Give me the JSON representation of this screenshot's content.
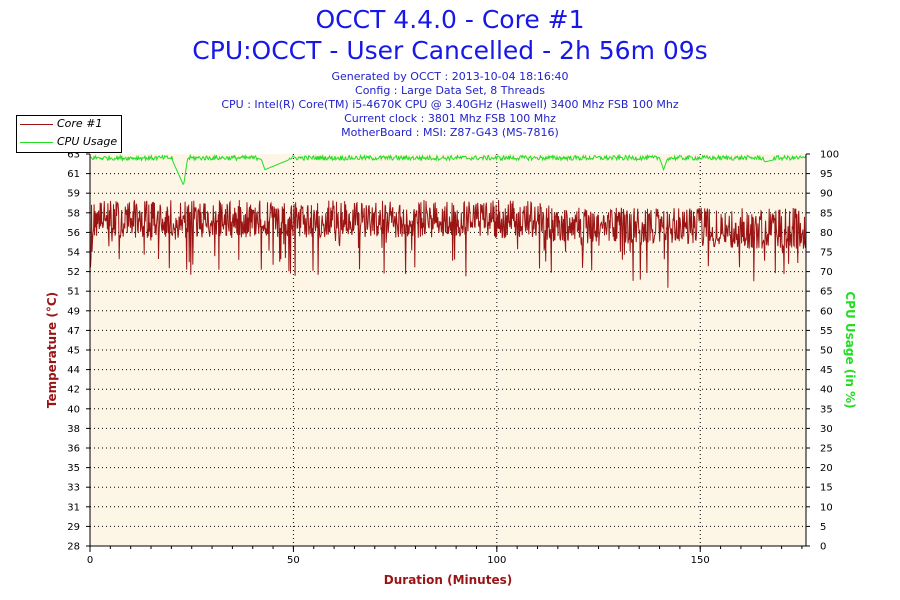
{
  "title": "OCCT 4.4.0 - Core #1",
  "subtitle": "CPU:OCCT - User Cancelled - 2h 56m 09s",
  "info": [
    "Generated by OCCT : 2013-10-04 18:16:40",
    "Config : Large Data Set, 8 Threads",
    "CPU : Intel(R) Core(TM) i5-4670K CPU @ 3.40GHz (Haswell) 3400 Mhz FSB 100 Mhz",
    "Current clock : 3801 Mhz FSB 100 Mhz",
    "MotherBoard : MSI: Z87-G43 (MS-7816)"
  ],
  "legend": [
    {
      "label": "Core #1",
      "color": "#9b1414"
    },
    {
      "label": "CPU Usage",
      "color": "#22dd22"
    }
  ],
  "colors": {
    "plot_background": "#fdf5e6",
    "temperature": "#9b1414",
    "cpu_usage": "#22dd22",
    "title": "#1717e6",
    "axis_title_left": "#9b1414",
    "axis_title_right": "#22dd22"
  },
  "chart_data": {
    "type": "line",
    "xlabel": "Duration (Minutes)",
    "ylabel": "Temperature (°C)",
    "y2label": "CPU Usage (in %)",
    "xlim": [
      0,
      176
    ],
    "ylim": [
      28,
      63
    ],
    "y2lim": [
      0,
      100
    ],
    "x_ticks": [
      "0",
      "50",
      "100",
      "150"
    ],
    "y_ticks": [
      "28",
      "29",
      "31",
      "33",
      "35",
      "36",
      "38",
      "40",
      "42",
      "44",
      "45",
      "47",
      "49",
      "51",
      "52",
      "54",
      "56",
      "58",
      "59",
      "61",
      "63"
    ],
    "y2_ticks": [
      "0",
      "5",
      "10",
      "15",
      "20",
      "25",
      "30",
      "35",
      "40",
      "45",
      "50",
      "55",
      "60",
      "65",
      "70",
      "75",
      "80",
      "85",
      "90",
      "95",
      "100"
    ],
    "grid": true,
    "legend_position": "top-left",
    "series": [
      {
        "name": "Core #1",
        "axis": "left",
        "x": [
          0,
          1,
          2,
          5,
          10,
          20,
          30,
          40,
          50,
          60,
          70,
          80,
          90,
          100,
          110,
          115,
          120,
          130,
          140,
          150,
          152,
          155,
          160,
          165,
          170,
          176
        ],
        "y": [
          54,
          57,
          57,
          57,
          57,
          57,
          57,
          57,
          57,
          57,
          57,
          57,
          57,
          57,
          57,
          56.5,
          56.5,
          56.5,
          56.5,
          56.5,
          56,
          56,
          56,
          56,
          56,
          56
        ],
        "y_max": [
          58.9,
          58.9,
          58.9,
          58.9,
          58.9,
          58.9,
          58.9,
          58.9,
          58.9,
          58.9,
          58.9,
          58.9,
          58.9,
          58.9,
          58.9,
          58.2,
          58.2,
          58.2,
          58.2,
          58.2,
          58.2,
          58.2,
          58.2,
          58.2,
          58.2,
          58.2
        ],
        "y_min": [
          51,
          52,
          52,
          52,
          52,
          52,
          52,
          52,
          52,
          52,
          52,
          52,
          52,
          52,
          52,
          52,
          52,
          52,
          51,
          51,
          51,
          51,
          51,
          51,
          51,
          51
        ]
      },
      {
        "name": "CPU Usage",
        "axis": "right",
        "x": [
          0,
          10,
          20,
          23,
          24,
          30,
          42,
          43,
          50,
          60,
          80,
          100,
          120,
          140,
          141,
          142,
          150,
          160,
          165,
          166,
          170,
          176
        ],
        "y": [
          99,
          99,
          99,
          92,
          99,
          99,
          99,
          96,
          99,
          99,
          99,
          99,
          99,
          99,
          96,
          99,
          99,
          99,
          99,
          98,
          99,
          99
        ]
      }
    ]
  }
}
